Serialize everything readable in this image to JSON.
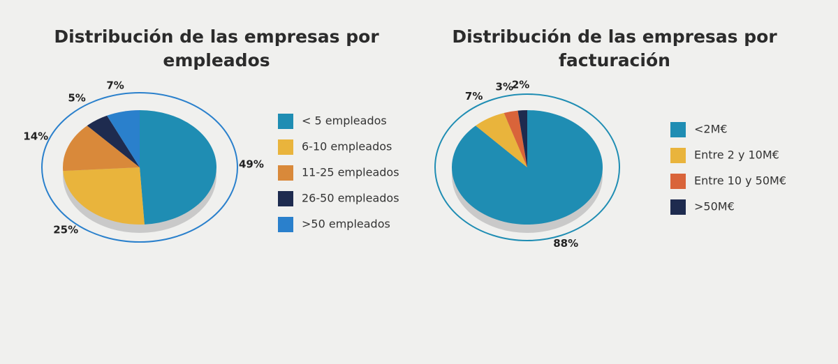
{
  "chart_data": [
    {
      "type": "pie",
      "title": "Distribución de las empresas por empleados",
      "categories": [
        "< 5 empleados",
        "6-10 empleados",
        "11-25 empleados",
        "26-50 empleados",
        ">50 empleados"
      ],
      "values": [
        49,
        25,
        14,
        5,
        7
      ],
      "value_labels": [
        "49%",
        "25%",
        "14%",
        "5%",
        "7%"
      ],
      "colors": [
        "#1f8db3",
        "#e9b43c",
        "#d9893a",
        "#1e2b4f",
        "#2a80cc"
      ]
    },
    {
      "type": "pie",
      "title": "Distribución de las empresas por facturación",
      "categories": [
        "<2M€",
        "Entre 2 y 10M€",
        "Entre 10 y 50M€",
        ">50M€"
      ],
      "values": [
        88,
        7,
        3,
        2
      ],
      "value_labels": [
        "88%",
        "7%",
        "3%",
        "2%"
      ],
      "colors": [
        "#1f8db3",
        "#e9b43c",
        "#d9643a",
        "#1e2b4f"
      ]
    }
  ]
}
